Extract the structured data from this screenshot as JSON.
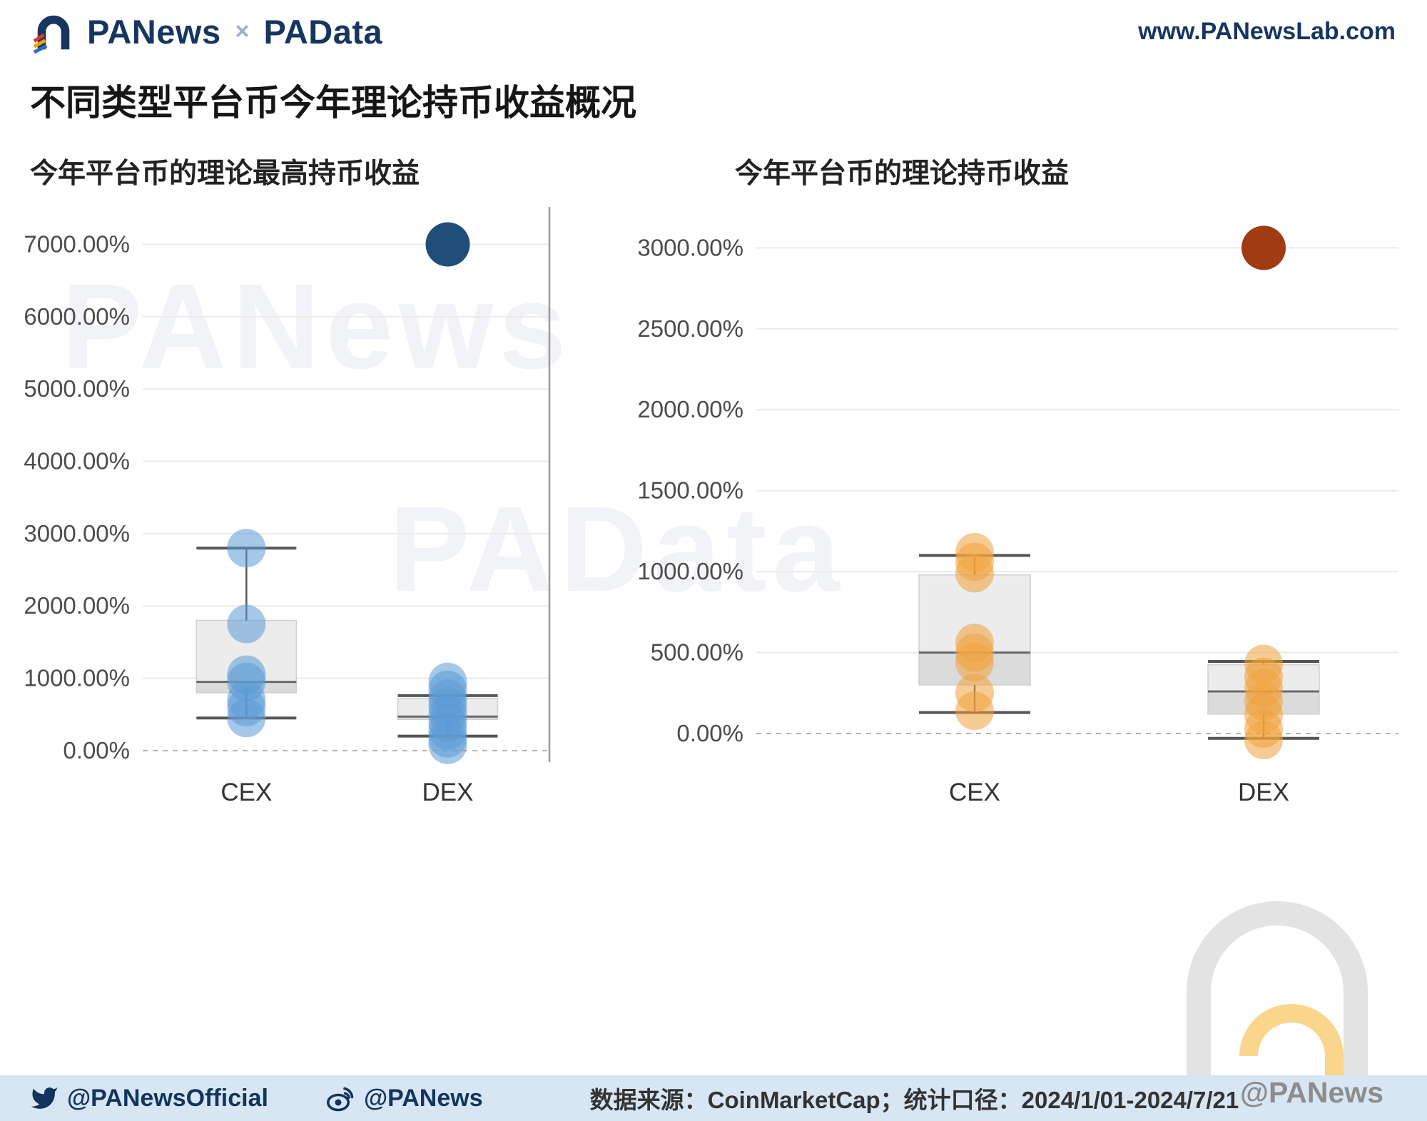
{
  "header": {
    "logo_panews": "PANews",
    "logo_x": "×",
    "logo_padata": "PAData",
    "site_url": "www.PANewsLab.com"
  },
  "title": "不同类型平台币今年理论持币收益概况",
  "watermarks": {
    "left": "PANews",
    "center": "PAData",
    "corner": "@PANews"
  },
  "footer": {
    "twitter_handle": "@PANewsOfficial",
    "weibo_handle": "@PANews",
    "source_text": "数据来源：CoinMarketCap；统计口径：2024/1/01-2024/7/21"
  },
  "chart_data": [
    {
      "type": "box-scatter",
      "title": "今年平台币的理论最高持币收益",
      "categories": [
        "CEX",
        "DEX"
      ],
      "ylim": [
        -100,
        7400
      ],
      "yticks": [
        0,
        1000,
        2000,
        3000,
        4000,
        5000,
        6000,
        7000
      ],
      "tick_suffix": ".00%",
      "grid": true,
      "legend": "none",
      "point_color": "#5b9bd5",
      "outlier_color": "#1f4e79",
      "series": [
        {
          "category": "CEX",
          "points": [
            2800,
            1750,
            1050,
            950,
            700,
            600,
            450
          ],
          "box": {
            "min": 450,
            "q1": 800,
            "median": 950,
            "q3": 1800,
            "max": 2800
          },
          "outliers": []
        },
        {
          "category": "DEX",
          "points": [
            950,
            840,
            720,
            610,
            500,
            390,
            280,
            170,
            80
          ],
          "box": {
            "min": 200,
            "q1": 430,
            "median": 470,
            "q3": 720,
            "max": 760
          },
          "outliers": [
            7000
          ]
        }
      ]
    },
    {
      "type": "box-scatter",
      "title": "今年平台币的理论持币收益",
      "categories": [
        "CEX",
        "DEX"
      ],
      "ylim": [
        -150,
        3200
      ],
      "yticks": [
        0,
        500,
        1000,
        1500,
        2000,
        2500,
        3000
      ],
      "tick_suffix": ".00%",
      "grid": true,
      "legend": "none",
      "point_color": "#f0a23c",
      "outlier_color": "#a23b12",
      "series": [
        {
          "category": "CEX",
          "points": [
            1120,
            1060,
            990,
            560,
            500,
            440,
            250,
            140
          ],
          "box": {
            "min": 130,
            "q1": 300,
            "median": 500,
            "q3": 980,
            "max": 1100
          },
          "outliers": []
        },
        {
          "category": "DEX",
          "points": [
            430,
            350,
            280,
            200,
            120,
            30,
            -40
          ],
          "box": {
            "min": -30,
            "q1": 120,
            "median": 260,
            "q3": 425,
            "max": 445
          },
          "outliers": [
            3000
          ]
        }
      ]
    }
  ]
}
